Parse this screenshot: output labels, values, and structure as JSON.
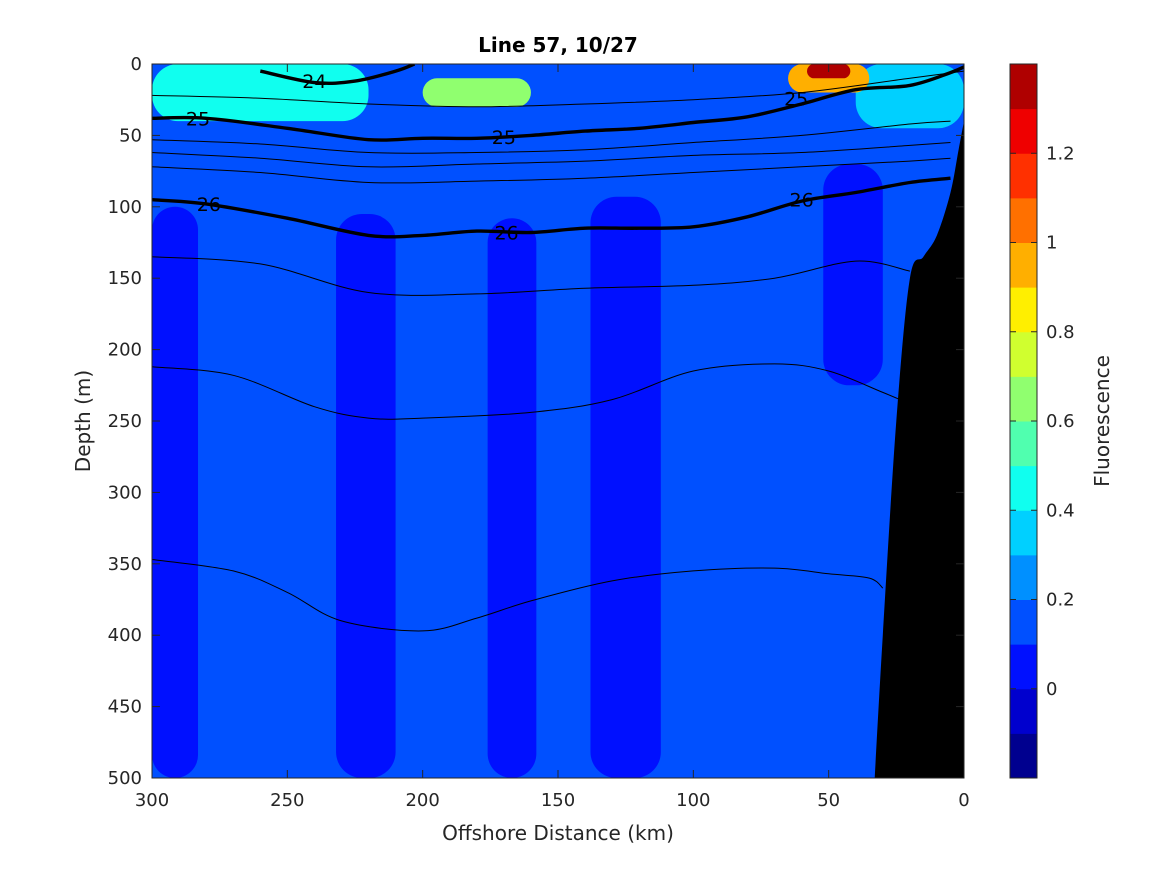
{
  "chart_data": {
    "type": "heatmap",
    "title": "Line 57, 10/27",
    "xlabel": "Offshore Distance (km)",
    "ylabel": "Depth (m)",
    "xlim": [
      300,
      0
    ],
    "ylim": [
      0,
      500
    ],
    "x_reversed": true,
    "y_reversed": true,
    "x_ticks": [
      300,
      250,
      200,
      150,
      100,
      50,
      0
    ],
    "y_ticks": [
      0,
      50,
      100,
      150,
      200,
      250,
      300,
      350,
      400,
      450,
      500
    ],
    "colorbar": {
      "label": "Fluorescence",
      "range": [
        -0.2,
        1.4
      ],
      "ticks": [
        0,
        0.2,
        0.4,
        0.6,
        0.8,
        1,
        1.2
      ],
      "levels": [
        -0.2,
        -0.1,
        0,
        0.1,
        0.2,
        0.3,
        0.4,
        0.5,
        0.6,
        0.7,
        0.8,
        0.9,
        1.0,
        1.1,
        1.2,
        1.3,
        1.4
      ],
      "colors": [
        "#00008f",
        "#0000ce",
        "#0010ff",
        "#0050ff",
        "#0090ff",
        "#00d0ff",
        "#10ffef",
        "#50ffaf",
        "#90ff6f",
        "#d0ff2f",
        "#ffef00",
        "#ffaf00",
        "#ff7000",
        "#ff3000",
        "#ef0000",
        "#af0000"
      ]
    },
    "background_value": 0.15,
    "regions": [
      {
        "name": "low-west",
        "value": 0.05,
        "x": [
          300,
          283
        ],
        "depth": [
          100,
          500
        ]
      },
      {
        "name": "low-band-a",
        "value": 0.05,
        "x": [
          232,
          210
        ],
        "depth": [
          105,
          500
        ]
      },
      {
        "name": "low-band-b",
        "value": 0.05,
        "x": [
          176,
          158
        ],
        "depth": [
          108,
          500
        ]
      },
      {
        "name": "low-band-c",
        "value": 0.05,
        "x": [
          138,
          112
        ],
        "depth": [
          93,
          500
        ]
      },
      {
        "name": "low-east",
        "value": 0.05,
        "x": [
          52,
          30
        ],
        "depth": [
          70,
          225
        ]
      },
      {
        "name": "nearshore",
        "value": 0.35,
        "x": [
          40,
          0
        ],
        "depth": [
          0,
          45
        ]
      },
      {
        "name": "surface-west",
        "value": 0.45,
        "x": [
          300,
          220
        ],
        "depth": [
          0,
          40
        ]
      },
      {
        "name": "surface-mid",
        "value": 0.65,
        "x": [
          200,
          160
        ],
        "depth": [
          10,
          30
        ]
      },
      {
        "name": "surface-east",
        "value": 0.95,
        "x": [
          65,
          35
        ],
        "depth": [
          0,
          20
        ]
      },
      {
        "name": "surface-peak",
        "value": 1.3,
        "x": [
          58,
          42
        ],
        "depth": [
          0,
          10
        ]
      }
    ],
    "isopycnals": [
      {
        "level": 24,
        "bold": true,
        "labeled": true,
        "x": [
          260,
          240,
          225,
          210,
          203
        ],
        "depth": [
          5,
          13,
          12,
          5,
          0
        ]
      },
      {
        "level": 25,
        "bold": true,
        "labeled": true,
        "x": [
          300,
          280,
          250,
          220,
          200,
          180,
          160,
          140,
          120,
          100,
          80,
          60,
          40,
          20,
          5,
          0
        ],
        "depth": [
          38,
          38,
          45,
          53,
          52,
          52,
          50,
          47,
          45,
          41,
          37,
          28,
          18,
          15,
          6,
          2
        ]
      },
      {
        "level": 26,
        "bold": true,
        "labeled": true,
        "x": [
          300,
          280,
          250,
          220,
          200,
          180,
          160,
          140,
          120,
          100,
          80,
          60,
          40,
          20,
          5
        ],
        "depth": [
          95,
          98,
          108,
          120,
          120,
          117,
          118,
          115,
          115,
          114,
          107,
          96,
          90,
          83,
          80
        ]
      },
      {
        "level": 24.5,
        "bold": false,
        "labeled": false,
        "x": [
          300,
          260,
          220,
          180,
          140,
          100,
          60,
          20,
          0
        ],
        "depth": [
          22,
          24,
          28,
          30,
          28,
          25,
          20,
          10,
          5
        ]
      },
      {
        "level": 25.2,
        "bold": false,
        "labeled": false,
        "x": [
          300,
          260,
          220,
          180,
          140,
          100,
          60,
          20,
          5
        ],
        "depth": [
          53,
          56,
          62,
          62,
          60,
          55,
          50,
          42,
          40
        ]
      },
      {
        "level": 25.5,
        "bold": false,
        "labeled": false,
        "x": [
          300,
          260,
          220,
          180,
          140,
          100,
          60,
          20,
          5
        ],
        "depth": [
          62,
          66,
          72,
          70,
          68,
          64,
          62,
          57,
          55
        ]
      },
      {
        "level": 25.8,
        "bold": false,
        "labeled": false,
        "x": [
          300,
          260,
          220,
          180,
          140,
          100,
          60,
          20,
          5
        ],
        "depth": [
          72,
          76,
          83,
          82,
          80,
          76,
          72,
          68,
          66
        ]
      },
      {
        "level": 26.2,
        "bold": false,
        "labeled": false,
        "x": [
          300,
          260,
          220,
          180,
          140,
          100,
          70,
          40,
          20
        ],
        "depth": [
          135,
          140,
          160,
          161,
          157,
          155,
          150,
          138,
          145
        ]
      },
      {
        "level": 26.4,
        "bold": false,
        "labeled": false,
        "x": [
          300,
          270,
          240,
          220,
          200,
          160,
          130,
          100,
          70,
          50,
          30,
          20
        ],
        "depth": [
          212,
          218,
          240,
          248,
          248,
          244,
          235,
          215,
          210,
          215,
          230,
          238
        ]
      },
      {
        "level": 26.6,
        "bold": false,
        "labeled": false,
        "x": [
          300,
          270,
          250,
          230,
          200,
          180,
          160,
          130,
          100,
          70,
          50,
          35,
          30
        ],
        "depth": [
          347,
          355,
          370,
          390,
          397,
          388,
          376,
          362,
          355,
          353,
          357,
          360,
          367
        ]
      }
    ],
    "labeled_contours": [
      {
        "text": "24",
        "x": 240,
        "depth": 12
      },
      {
        "text": "25",
        "x": 283,
        "depth": 38
      },
      {
        "text": "25",
        "x": 170,
        "depth": 51
      },
      {
        "text": "25",
        "x": 62,
        "depth": 24
      },
      {
        "text": "26",
        "x": 279,
        "depth": 98
      },
      {
        "text": "26",
        "x": 169,
        "depth": 118
      },
      {
        "text": "26",
        "x": 60,
        "depth": 95
      }
    ],
    "bathymetry": {
      "x": [
        33,
        30,
        25,
        20,
        15,
        10,
        5,
        2,
        0
      ],
      "depth": [
        500,
        400,
        250,
        150,
        135,
        120,
        90,
        60,
        40
      ]
    }
  }
}
